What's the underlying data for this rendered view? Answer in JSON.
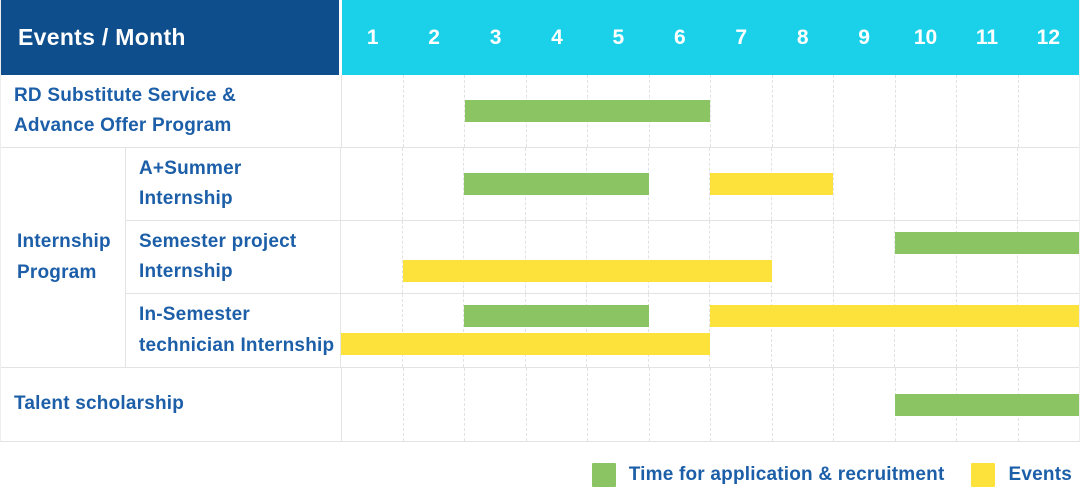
{
  "colors": {
    "navy": "#0e4e8c",
    "cyan": "#1ad1e9",
    "green": "#8bc563",
    "yellow": "#fde23c",
    "text-blue": "#1c5fa8"
  },
  "header": {
    "label": "Events / Month"
  },
  "chart_data": {
    "type": "gantt",
    "title": "Events / Month",
    "months": [
      "1",
      "2",
      "3",
      "4",
      "5",
      "6",
      "7",
      "8",
      "9",
      "10",
      "11",
      "12"
    ],
    "x_range": [
      1,
      12
    ],
    "legend_position": "bottom-right",
    "rows": [
      {
        "id": "rd-substitute",
        "label_lines": [
          "RD Substitute Service &",
          "Advance Offer Program"
        ],
        "group": null,
        "bars": [
          {
            "type": "application",
            "start_month": 3,
            "end_month": 6,
            "lane": "middle"
          }
        ]
      },
      {
        "id": "a-summer",
        "label_lines": [
          "A+Summer",
          "Internship"
        ],
        "group": "Internship Program",
        "bars": [
          {
            "type": "application",
            "start_month": 3,
            "end_month": 5,
            "lane": "middle"
          },
          {
            "type": "event",
            "start_month": 7,
            "end_month": 8,
            "lane": "middle"
          }
        ]
      },
      {
        "id": "semester-project",
        "label_lines": [
          "Semester project",
          "Internship"
        ],
        "group": "Internship Program",
        "bars": [
          {
            "type": "application",
            "start_month": 10,
            "end_month": 12,
            "lane": "top"
          },
          {
            "type": "event",
            "start_month": 2,
            "end_month": 7,
            "lane": "bottom"
          }
        ]
      },
      {
        "id": "in-semester",
        "label_lines": [
          "In-Semester",
          "technician Internship"
        ],
        "group": "Internship Program",
        "bars": [
          {
            "type": "application",
            "start_month": 3,
            "end_month": 5,
            "lane": "top"
          },
          {
            "type": "event",
            "start_month": 7,
            "end_month": 12,
            "lane": "top"
          },
          {
            "type": "event",
            "start_month": 1,
            "end_month": 6,
            "lane": "bottom"
          }
        ]
      },
      {
        "id": "talent-scholarship",
        "label_lines": [
          "Talent scholarship"
        ],
        "group": null,
        "bars": [
          {
            "type": "application",
            "start_month": 10,
            "end_month": 12,
            "lane": "middle"
          }
        ]
      }
    ],
    "group_label_lines": [
      "Internship",
      "Program"
    ],
    "legend": [
      {
        "type": "application",
        "label": "Time for application & recruitment",
        "color": "#8bc563"
      },
      {
        "type": "event",
        "label": "Events",
        "color": "#fde23c"
      }
    ]
  }
}
